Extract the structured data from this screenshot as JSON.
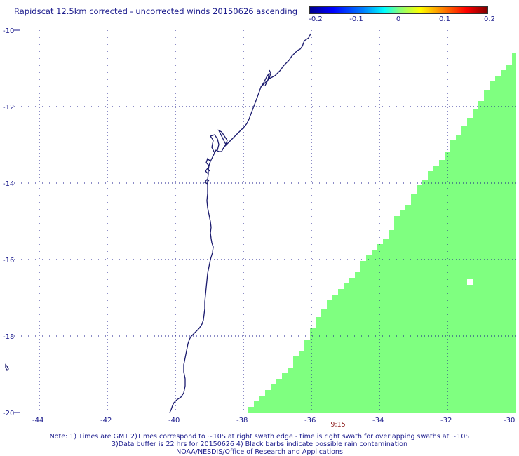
{
  "title": "Rapidscat 12.5km corrected - uncorrected winds 20150626 ascending",
  "colorbar": {
    "labels": [
      "-0.2",
      "-0.1",
      "0",
      "0.1",
      "0.2"
    ],
    "min": -0.2,
    "max": 0.2
  },
  "map": {
    "lon_range": [
      -45,
      -30
    ],
    "lat_range": [
      -20,
      -10
    ],
    "lon_ticks": [
      "-44",
      "-42",
      "-40",
      "-38",
      "-36",
      "-34",
      "-32",
      "-30"
    ],
    "lat_ticks": [
      "-10",
      "-12",
      "-14",
      "-16",
      "-18",
      "-20"
    ],
    "grid": "dotted",
    "coastline_color": "#1a1a6e",
    "swath_color": "#7fff80",
    "swath_value": 0
  },
  "time_label": "9:15",
  "notes": [
    "Note: 1) Times are GMT 2)Times correspond to ~10S at right swath edge - time is right swath for overlapping swaths at ~10S",
    "3)Data buffer is 22 hrs for 20150626 4) Black barbs indicate possible rain contamination",
    "NOAA/NESDIS/Office of Research and Applications"
  ]
}
